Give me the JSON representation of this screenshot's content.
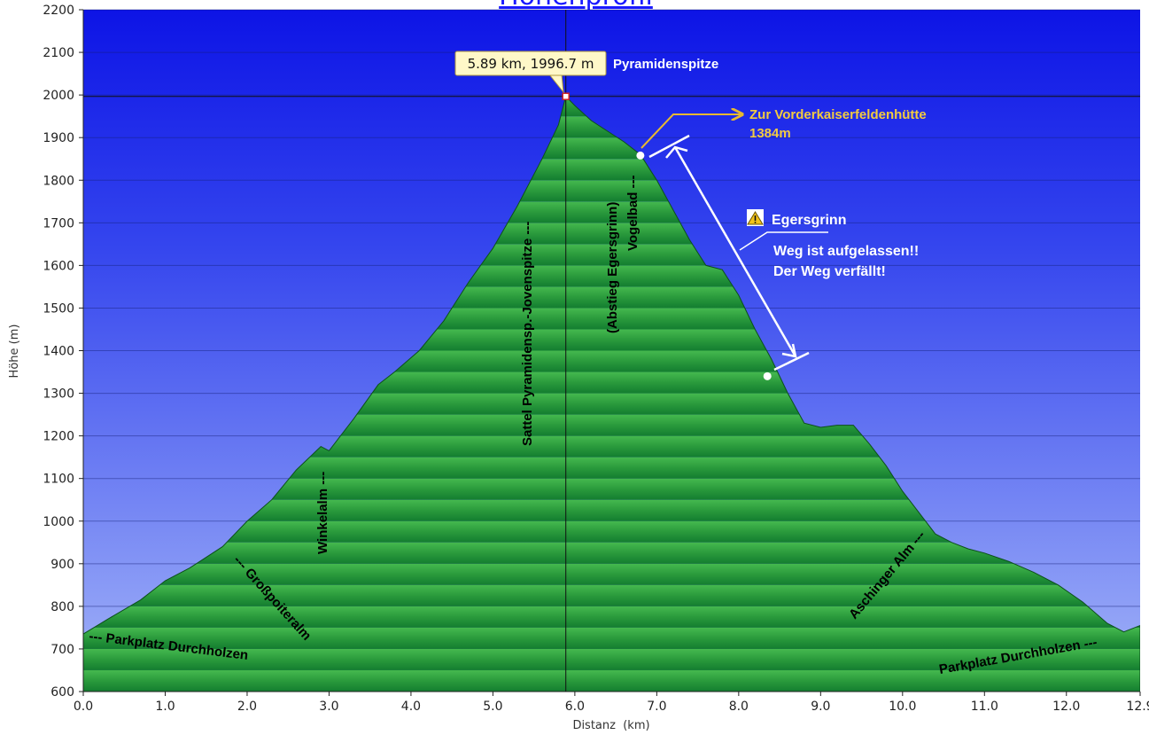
{
  "page_title": "Höhenprofil",
  "chart_data": {
    "type": "area",
    "title": "Höhenprofil",
    "xlabel": "Distanz  (km)",
    "ylabel": "Höhe (m)",
    "xlim": [
      0,
      12.9
    ],
    "ylim": [
      600,
      2200
    ],
    "x_ticks": [
      "0.0",
      "1.0",
      "2.0",
      "3.0",
      "4.0",
      "5.0",
      "6.0",
      "7.0",
      "8.0",
      "9.0",
      "10.0",
      "11.0",
      "12.0",
      "12.9"
    ],
    "y_ticks": [
      "600",
      "700",
      "800",
      "900",
      "1000",
      "1100",
      "1200",
      "1300",
      "1400",
      "1500",
      "1600",
      "1700",
      "1800",
      "1900",
      "2000",
      "2100",
      "2200"
    ],
    "grid": "horizontal",
    "series": [
      {
        "x": [
          0,
          0.3,
          0.7,
          1.0,
          1.3,
          1.7,
          2.0,
          2.3,
          2.6,
          2.9,
          3.0,
          3.3,
          3.6,
          3.8,
          4.1,
          4.4,
          4.7,
          5.0,
          5.3,
          5.6,
          5.8,
          5.89,
          6.0,
          6.2,
          6.4,
          6.6,
          6.8,
          7.0,
          7.2,
          7.4,
          7.6,
          7.8,
          8.0,
          8.2,
          8.4,
          8.6,
          8.8,
          9.0,
          9.2,
          9.4,
          9.6,
          9.8,
          10.0,
          10.2,
          10.4,
          10.6,
          10.8,
          11.0,
          11.3,
          11.6,
          11.9,
          12.2,
          12.5,
          12.7,
          12.9
        ],
        "y": [
          735,
          770,
          815,
          860,
          890,
          940,
          1000,
          1050,
          1120,
          1175,
          1165,
          1240,
          1320,
          1350,
          1400,
          1470,
          1560,
          1640,
          1740,
          1850,
          1930,
          1996.7,
          1975,
          1940,
          1915,
          1890,
          1860,
          1800,
          1730,
          1660,
          1600,
          1590,
          1530,
          1450,
          1380,
          1300,
          1230,
          1220,
          1225,
          1225,
          1180,
          1130,
          1070,
          1020,
          970,
          950,
          935,
          925,
          905,
          880,
          850,
          810,
          760,
          740,
          755
        ]
      }
    ],
    "tooltip": "5.89 km, 1996.7 m",
    "peak_label": "Pyramidenspitze",
    "markers": [
      {
        "name": "route-start-marker",
        "x": 6.8,
        "y": 1858
      },
      {
        "name": "route-end-marker",
        "x": 8.35,
        "y": 1340
      }
    ],
    "annotations": {
      "parkplatz_left": "--- Parkplatz Durchholzen",
      "grosspoiteralm": "--- Großpoiteralm",
      "winkelalm": "Winkelalm ---",
      "sattel": "Sattel Pyramidensp.-Jovenspitze ---",
      "abstieg": "(Abstieg Egersgrinn)",
      "vogelbad": "Vogelbad ---",
      "vorderkaiser_line1": "Zur Vorderkaiserfeldenhütte",
      "vorderkaiser_line2": "1384m",
      "egersgrinn_title": "Egersgrinn",
      "warning_line1": "Weg ist aufgelassen!!",
      "warning_line2": "Der Weg verfällt!",
      "aschinger": "Aschinger Alm ---",
      "parkplatz_right": "Parkplatz Durchholzen ---"
    },
    "colors": {
      "sky_top": "#0d14e6",
      "sky_bottom": "#a3b4f8",
      "terrain_light": "#3fb14a",
      "terrain_dark": "#117a2f",
      "arrow_gold": "#e8b830",
      "tooltip_bg": "#fff8c8"
    }
  }
}
